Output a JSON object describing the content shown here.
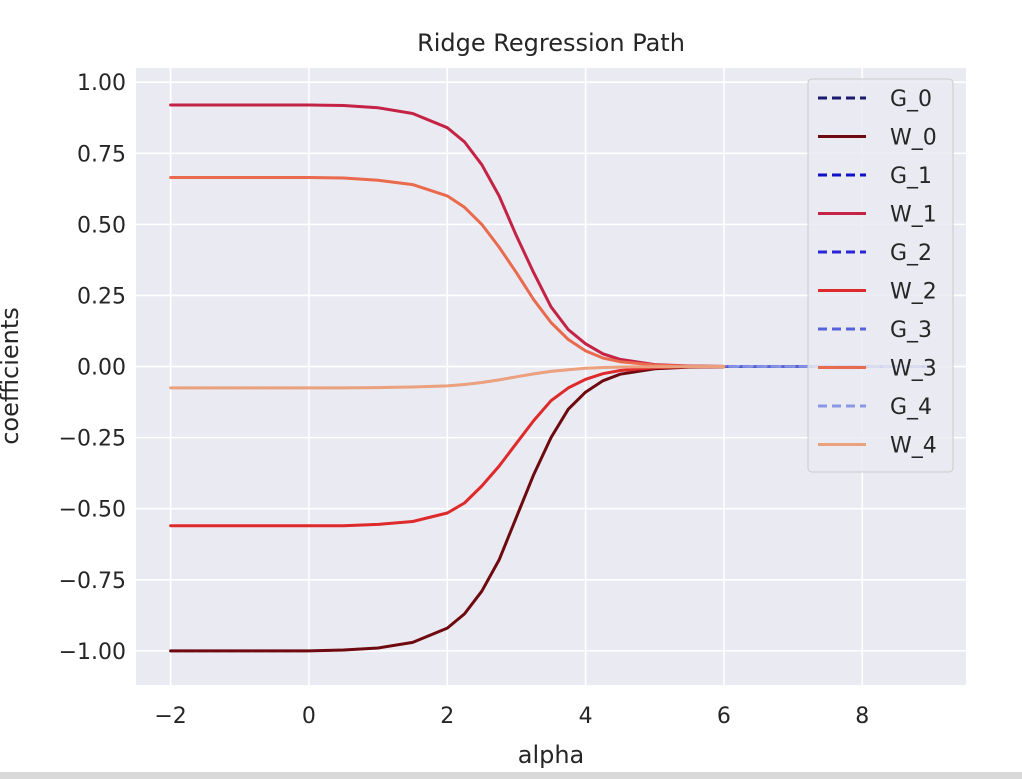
{
  "chart_data": {
    "type": "line",
    "title": "Ridge Regression Path",
    "xlabel": "alpha",
    "ylabel": "coefficients",
    "xlim": [
      -2.5,
      9.5
    ],
    "ylim": [
      -1.12,
      1.05
    ],
    "xticks": [
      -2,
      0,
      2,
      4,
      6,
      8
    ],
    "xtick_labels": [
      "−2",
      "0",
      "2",
      "4",
      "6",
      "8"
    ],
    "yticks": [
      1.0,
      0.75,
      0.5,
      0.25,
      0.0,
      -0.25,
      -0.5,
      -0.75,
      -1.0
    ],
    "ytick_labels": [
      "1.00",
      "0.75",
      "0.50",
      "0.25",
      "0.00",
      "−0.25",
      "−0.50",
      "−0.75",
      "−1.00"
    ],
    "grid": true,
    "background": "#eaeaf2",
    "legend_position": "top-right",
    "x": [
      -2.0,
      -1.5,
      -1.0,
      -0.5,
      0.0,
      0.5,
      1.0,
      1.5,
      2.0,
      2.25,
      2.5,
      2.75,
      3.0,
      3.25,
      3.5,
      3.75,
      4.0,
      4.25,
      4.5,
      5.0,
      5.5,
      6.0,
      7.0,
      8.0,
      9.0
    ],
    "series": [
      {
        "name": "G_0",
        "style": "dashed",
        "color": "#1b1b6e",
        "x_end": 9.0,
        "values": [
          -1.0,
          -1.0,
          -1.0,
          -1.0,
          -1.0,
          -0.997,
          -0.99,
          -0.97,
          -0.92,
          -0.87,
          -0.79,
          -0.68,
          -0.53,
          -0.38,
          -0.25,
          -0.15,
          -0.09,
          -0.05,
          -0.027,
          -0.008,
          -0.002,
          -0.0005,
          0.0,
          0.0,
          0.0
        ]
      },
      {
        "name": "W_0",
        "style": "solid",
        "color": "#6e0a0f",
        "x_end": 6.0,
        "values": [
          -1.0,
          -1.0,
          -1.0,
          -1.0,
          -1.0,
          -0.997,
          -0.99,
          -0.97,
          -0.92,
          -0.87,
          -0.79,
          -0.68,
          -0.53,
          -0.38,
          -0.25,
          -0.15,
          -0.09,
          -0.05,
          -0.027,
          -0.008,
          -0.002,
          -0.0005,
          0.0,
          0.0,
          0.0
        ]
      },
      {
        "name": "G_1",
        "style": "dashed",
        "color": "#1010c8",
        "x_end": 9.0,
        "values": [
          0.92,
          0.92,
          0.92,
          0.92,
          0.92,
          0.918,
          0.91,
          0.89,
          0.84,
          0.79,
          0.71,
          0.6,
          0.46,
          0.33,
          0.21,
          0.13,
          0.08,
          0.045,
          0.025,
          0.007,
          0.002,
          0.0005,
          0.0,
          0.0,
          0.0
        ]
      },
      {
        "name": "W_1",
        "style": "solid",
        "color": "#c42345",
        "x_end": 6.0,
        "values": [
          0.92,
          0.92,
          0.92,
          0.92,
          0.92,
          0.918,
          0.91,
          0.89,
          0.84,
          0.79,
          0.71,
          0.6,
          0.46,
          0.33,
          0.21,
          0.13,
          0.08,
          0.045,
          0.025,
          0.007,
          0.002,
          0.0005,
          0.0,
          0.0,
          0.0
        ]
      },
      {
        "name": "G_2",
        "style": "dashed",
        "color": "#2a25d6",
        "x_end": 9.0,
        "values": [
          -0.56,
          -0.56,
          -0.56,
          -0.56,
          -0.56,
          -0.56,
          -0.555,
          -0.545,
          -0.515,
          -0.48,
          -0.42,
          -0.35,
          -0.27,
          -0.19,
          -0.12,
          -0.075,
          -0.045,
          -0.025,
          -0.014,
          -0.004,
          -0.001,
          -0.0003,
          0.0,
          0.0,
          0.0
        ]
      },
      {
        "name": "W_2",
        "style": "solid",
        "color": "#de2a2a",
        "x_end": 6.0,
        "values": [
          -0.56,
          -0.56,
          -0.56,
          -0.56,
          -0.56,
          -0.56,
          -0.555,
          -0.545,
          -0.515,
          -0.48,
          -0.42,
          -0.35,
          -0.27,
          -0.19,
          -0.12,
          -0.075,
          -0.045,
          -0.025,
          -0.014,
          -0.004,
          -0.001,
          -0.0003,
          0.0,
          0.0,
          0.0
        ]
      },
      {
        "name": "G_3",
        "style": "dashed",
        "color": "#5562dc",
        "x_end": 9.0,
        "values": [
          0.665,
          0.665,
          0.665,
          0.665,
          0.665,
          0.663,
          0.655,
          0.64,
          0.6,
          0.56,
          0.5,
          0.42,
          0.33,
          0.235,
          0.155,
          0.095,
          0.055,
          0.03,
          0.017,
          0.005,
          0.0012,
          0.0003,
          0.0,
          0.0,
          0.0
        ]
      },
      {
        "name": "W_3",
        "style": "solid",
        "color": "#ea6a4d",
        "x_end": 6.0,
        "values": [
          0.665,
          0.665,
          0.665,
          0.665,
          0.665,
          0.663,
          0.655,
          0.64,
          0.6,
          0.56,
          0.5,
          0.42,
          0.33,
          0.235,
          0.155,
          0.095,
          0.055,
          0.03,
          0.017,
          0.005,
          0.0012,
          0.0003,
          0.0,
          0.0,
          0.0
        ]
      },
      {
        "name": "G_4",
        "style": "dashed",
        "color": "#8898e6",
        "x_end": 9.0,
        "values": [
          -0.075,
          -0.075,
          -0.075,
          -0.075,
          -0.075,
          -0.075,
          -0.074,
          -0.072,
          -0.068,
          -0.063,
          -0.056,
          -0.047,
          -0.036,
          -0.026,
          -0.017,
          -0.011,
          -0.006,
          -0.0035,
          -0.002,
          -0.0006,
          -0.0002,
          0.0,
          0.0,
          0.0,
          0.0
        ]
      },
      {
        "name": "W_4",
        "style": "solid",
        "color": "#eba07e",
        "x_end": 6.0,
        "values": [
          -0.075,
          -0.075,
          -0.075,
          -0.075,
          -0.075,
          -0.075,
          -0.074,
          -0.072,
          -0.068,
          -0.063,
          -0.056,
          -0.047,
          -0.036,
          -0.026,
          -0.017,
          -0.011,
          -0.006,
          -0.0035,
          -0.002,
          -0.0006,
          -0.0002,
          0.0,
          0.0,
          0.0,
          0.0
        ]
      }
    ]
  }
}
